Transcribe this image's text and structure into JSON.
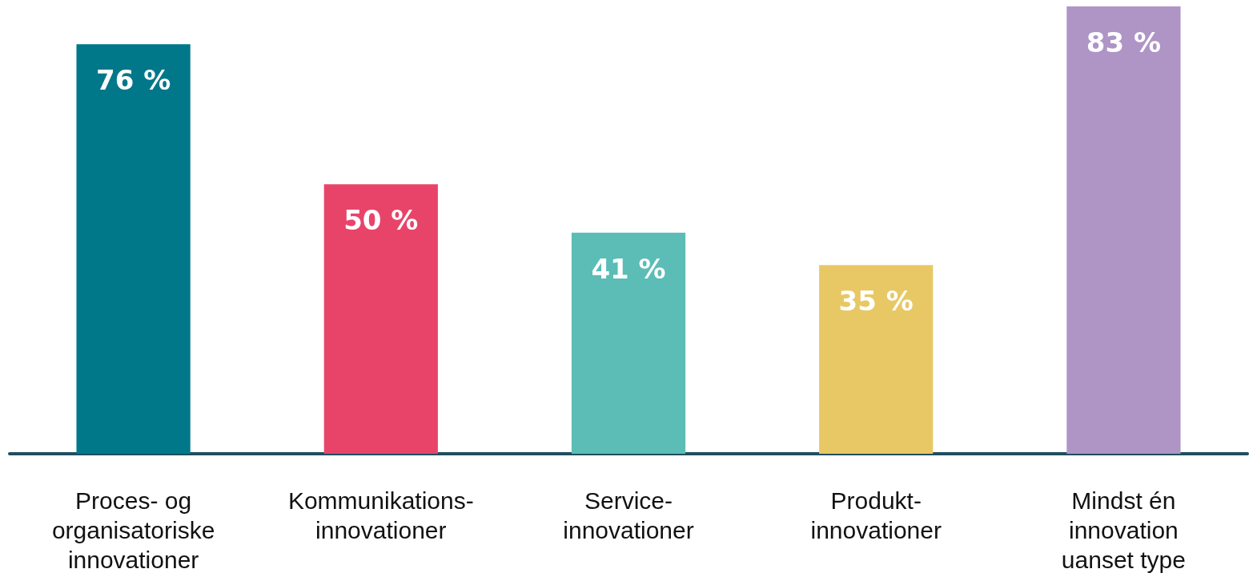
{
  "chart_data": {
    "type": "bar",
    "categories": [
      "Proces- og\norganisatoriske\ninnovationer",
      "Kommunikations-\ninnovationer",
      "Service-\ninnovationer",
      "Produkt-\ninnovationer",
      "Mindst én\ninnovation\nuanset type"
    ],
    "values": [
      76,
      50,
      41,
      35,
      83
    ],
    "colors": [
      "#00788a",
      "#e8446a",
      "#5bbdb6",
      "#e8c865",
      "#ae95c6"
    ],
    "value_labels": [
      "76 %",
      "50 %",
      "41 %",
      "35 %",
      "83 %"
    ]
  }
}
